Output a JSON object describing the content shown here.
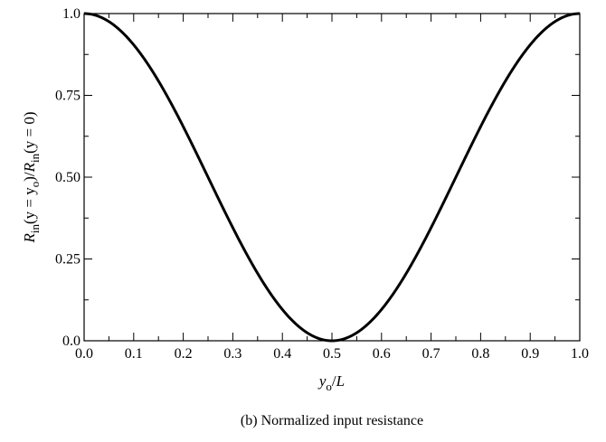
{
  "chart_data": {
    "type": "line",
    "title": "",
    "caption": "(b) Normalized input resistance",
    "xlabel": {
      "main": "y",
      "sub": "o",
      "rest": "/L"
    },
    "ylabel": {
      "parts": [
        {
          "t": "R",
          "italic": true
        },
        {
          "t": "in",
          "sub": true
        },
        {
          "t": "(y = y"
        },
        {
          "t": "o",
          "sub": true
        },
        {
          "t": ")/"
        },
        {
          "t": "R",
          "italic": true
        },
        {
          "t": "in",
          "sub": true
        },
        {
          "t": "(y = 0)"
        }
      ]
    },
    "xlim": [
      0.0,
      1.0
    ],
    "ylim": [
      0.0,
      1.0
    ],
    "x_ticks": [
      "0.0",
      "0.1",
      "0.2",
      "0.3",
      "0.4",
      "0.5",
      "0.6",
      "0.7",
      "0.8",
      "0.9",
      "1.0"
    ],
    "y_ticks": [
      "0.0",
      "0.25",
      "0.50",
      "0.75",
      "1.0"
    ],
    "grid": false,
    "series": [
      {
        "function": "cos^2(pi * x)",
        "x": [
          0.0,
          0.05,
          0.1,
          0.15,
          0.2,
          0.25,
          0.3,
          0.35,
          0.4,
          0.45,
          0.5,
          0.55,
          0.6,
          0.65,
          0.7,
          0.75,
          0.8,
          0.85,
          0.9,
          0.95,
          1.0
        ],
        "y": [
          1.0,
          0.976,
          0.905,
          0.794,
          0.655,
          0.5,
          0.345,
          0.206,
          0.095,
          0.024,
          0.0,
          0.024,
          0.095,
          0.206,
          0.345,
          0.5,
          0.655,
          0.794,
          0.905,
          0.976,
          1.0
        ],
        "color": "#000000"
      }
    ]
  }
}
